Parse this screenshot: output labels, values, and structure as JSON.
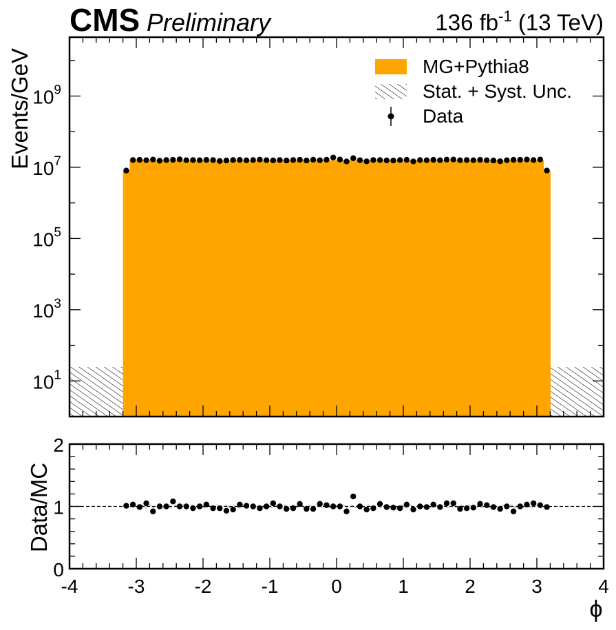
{
  "header": {
    "cms": "CMS",
    "preliminary": "Preliminary",
    "lumi_value": "136 fb",
    "lumi_exp": "-1",
    "energy": " (13 TeV)"
  },
  "colors": {
    "mc_fill": "#ffa500",
    "data_marker": "#000000",
    "axes": "#000000"
  },
  "chart_data": [
    {
      "type": "bar",
      "panel": "main",
      "ylabel": "Events/GeV",
      "yscale": "log",
      "ylim": [
        1,
        45000000000.0
      ],
      "xlim": [
        -4,
        4
      ],
      "ytick_labels": [
        {
          "base": "10",
          "exp": "1",
          "value": 10
        },
        {
          "base": "10",
          "exp": "3",
          "value": 1000
        },
        {
          "base": "10",
          "exp": "5",
          "value": 100000
        },
        {
          "base": "10",
          "exp": "7",
          "value": 10000000
        },
        {
          "base": "10",
          "exp": "9",
          "value": 1000000000
        }
      ],
      "bins": {
        "low": -3.2,
        "high": 3.2,
        "count": 64
      },
      "series": [
        {
          "name": "MG+Pythia8",
          "kind": "histogram",
          "values": [
            8000000.0,
            15500000.0,
            15700000.0,
            15600000.0,
            15800000.0,
            15700000.0,
            15900000.0,
            15800000.0,
            15700000.0,
            15600000.0,
            15700000.0,
            15800000.0,
            15600000.0,
            15700000.0,
            15500000.0,
            15700000.0,
            15800000.0,
            15700000.0,
            15600000.0,
            15800000.0,
            15700000.0,
            15800000.0,
            15600000.0,
            15700000.0,
            15800000.0,
            15700000.0,
            15600000.0,
            15800000.0,
            15700000.0,
            15600000.0,
            15700000.0,
            15800000.0,
            15700000.0,
            15800000.0,
            15700000.0,
            15600000.0,
            15700000.0,
            15800000.0,
            15700000.0,
            15600000.0,
            15800000.0,
            15700000.0,
            15800000.0,
            15600000.0,
            15700000.0,
            15800000.0,
            15700000.0,
            15600000.0,
            15700000.0,
            15800000.0,
            15600000.0,
            15700000.0,
            15800000.0,
            15700000.0,
            15600000.0,
            15800000.0,
            15700000.0,
            15600000.0,
            15700000.0,
            15800000.0,
            15700000.0,
            15600000.0,
            15700000.0,
            8000000.0
          ]
        },
        {
          "name": "Data",
          "kind": "points",
          "x": [
            -3.15,
            -3.05,
            -2.95,
            -2.85,
            -2.75,
            -2.65,
            -2.55,
            -2.45,
            -2.35,
            -2.25,
            -2.15,
            -2.05,
            -1.95,
            -1.85,
            -1.75,
            -1.65,
            -1.55,
            -1.45,
            -1.35,
            -1.25,
            -1.15,
            -1.05,
            -0.95,
            -0.85,
            -0.75,
            -0.65,
            -0.55,
            -0.45,
            -0.35,
            -0.25,
            -0.15,
            -0.05,
            0.05,
            0.15,
            0.25,
            0.35,
            0.45,
            0.55,
            0.65,
            0.75,
            0.85,
            0.95,
            1.05,
            1.15,
            1.25,
            1.35,
            1.45,
            1.55,
            1.65,
            1.75,
            1.85,
            1.95,
            2.05,
            2.15,
            2.25,
            2.35,
            2.45,
            2.55,
            2.65,
            2.75,
            2.85,
            2.95,
            3.05,
            3.15
          ],
          "values": [
            8100000.0,
            16000000.0,
            16200000.0,
            15800000.0,
            16500000.0,
            15300000.0,
            16000000.0,
            16200000.0,
            16700000.0,
            15800000.0,
            16000000.0,
            15800000.0,
            16100000.0,
            16000000.0,
            15000000.0,
            15500000.0,
            16000000.0,
            16100000.0,
            15700000.0,
            16000000.0,
            16400000.0,
            15800000.0,
            15600000.0,
            16000000.0,
            15500000.0,
            16000000.0,
            16200000.0,
            15500000.0,
            16300000.0,
            15800000.0,
            16300000.0,
            18800000.0,
            16500000.0,
            14600000.0,
            18000000.0,
            15800000.0,
            14700000.0,
            16000000.0,
            16000000.0,
            15600000.0,
            15500000.0,
            16000000.0,
            16200000.0,
            14600000.0,
            16000000.0,
            15800000.0,
            16200000.0,
            15800000.0,
            16400000.0,
            16500000.0,
            15800000.0,
            16000000.0,
            15800000.0,
            16200000.0,
            15800000.0,
            15500000.0,
            14800000.0,
            15800000.0,
            16200000.0,
            16200000.0,
            16500000.0,
            16000000.0,
            16500000.0,
            8100000.0
          ]
        }
      ],
      "legend": {
        "placement": "top-right",
        "entries": [
          "MG+Pythia8",
          "Stat. + Syst. Unc.",
          "Data"
        ]
      }
    },
    {
      "type": "scatter",
      "panel": "ratio",
      "ylabel": "Data/MC",
      "xlabel": "ϕ",
      "xlim": [
        -4,
        4
      ],
      "ylim": [
        0,
        2
      ],
      "xtick_labels": [
        "-4",
        "-3",
        "-2",
        "-1",
        "0",
        "1",
        "2",
        "3",
        "4"
      ],
      "ytick_labels": [
        "0",
        "1",
        "2"
      ],
      "reference_line": 1,
      "series": [
        {
          "name": "Data/MC",
          "x": [
            -3.15,
            -3.05,
            -2.95,
            -2.85,
            -2.75,
            -2.65,
            -2.55,
            -2.45,
            -2.35,
            -2.25,
            -2.15,
            -2.05,
            -1.95,
            -1.85,
            -1.75,
            -1.65,
            -1.55,
            -1.45,
            -1.35,
            -1.25,
            -1.15,
            -1.05,
            -0.95,
            -0.85,
            -0.75,
            -0.65,
            -0.55,
            -0.45,
            -0.35,
            -0.25,
            -0.15,
            -0.05,
            0.05,
            0.15,
            0.25,
            0.35,
            0.45,
            0.55,
            0.65,
            0.75,
            0.85,
            0.95,
            1.05,
            1.15,
            1.25,
            1.35,
            1.45,
            1.55,
            1.65,
            1.75,
            1.85,
            1.95,
            2.05,
            2.15,
            2.25,
            2.35,
            2.45,
            2.55,
            2.65,
            2.75,
            2.85,
            2.95,
            3.05,
            3.15
          ],
          "values": [
            1.01,
            1.03,
            0.99,
            1.05,
            0.92,
            1.0,
            1.0,
            1.08,
            1.0,
            1.0,
            0.97,
            1.0,
            1.03,
            0.97,
            0.97,
            0.93,
            0.95,
            1.03,
            1.01,
            1.0,
            0.97,
            1.0,
            1.05,
            1.0,
            0.96,
            0.97,
            1.04,
            0.96,
            0.96,
            1.04,
            1.02,
            1.0,
            1.0,
            0.92,
            1.16,
            1.0,
            0.95,
            0.97,
            1.04,
            0.99,
            0.98,
            0.97,
            1.03,
            0.95,
            1.0,
            0.99,
            1.03,
            0.99,
            1.05,
            1.05,
            0.96,
            0.97,
            0.98,
            1.04,
            1.02,
            0.99,
            0.96,
            1.0,
            0.92,
            1.0,
            1.03,
            1.05,
            1.02,
            0.99
          ]
        }
      ]
    }
  ]
}
